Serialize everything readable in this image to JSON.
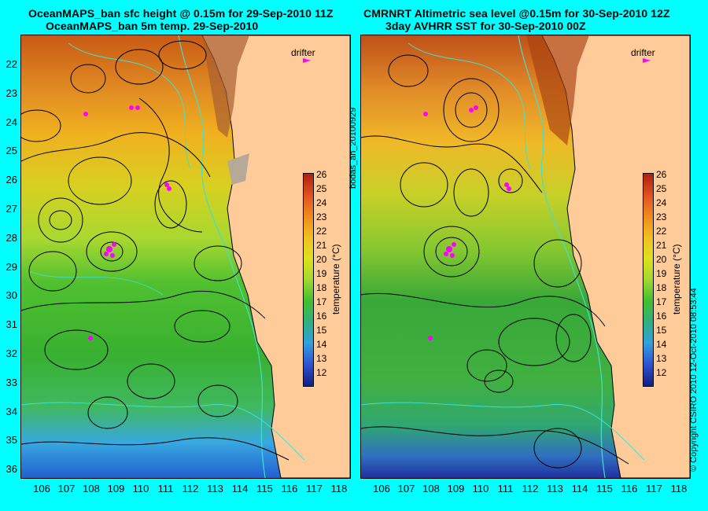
{
  "left_panel": {
    "title_line1": "OceanMAPS_ban sfc height @ 0.15m for 29-Sep-2010 11Z",
    "title_line2": "OceanMAPS_ban 5m temp. 29-Sep-2010"
  },
  "right_panel": {
    "title_line1": "CMRNRT Altimetric sea level  @0.15m  for 30-Sep-2010 12Z",
    "title_line2": "3day AVHRR SST for 30-Sep-2010 00Z"
  },
  "latitude_labels": [
    "22",
    "23",
    "24",
    "25",
    "26",
    "27",
    "28",
    "29",
    "30",
    "31",
    "32",
    "33",
    "34",
    "35",
    "36"
  ],
  "longitude_labels": [
    "106",
    "107",
    "108",
    "109",
    "110",
    "111",
    "112",
    "113",
    "114",
    "115",
    "116",
    "117",
    "118"
  ],
  "colorbar": {
    "ticks": [
      "26",
      "25",
      "24",
      "23",
      "22",
      "21",
      "20",
      "19",
      "18",
      "17",
      "16",
      "15",
      "14",
      "13",
      "12"
    ],
    "unit_label": "temperature (°C)"
  },
  "legend_drifter": "drifter",
  "side_label": "bodas_an_20100929",
  "copyright": "© Copyright CSIRO 2010   12-Oct-2010 08:53:44",
  "colors": {
    "background": "#00ffff",
    "land": "#ffcc99",
    "drifter": "#ff00ff",
    "isobath": "#40e0d0",
    "contour": "#000000"
  }
}
